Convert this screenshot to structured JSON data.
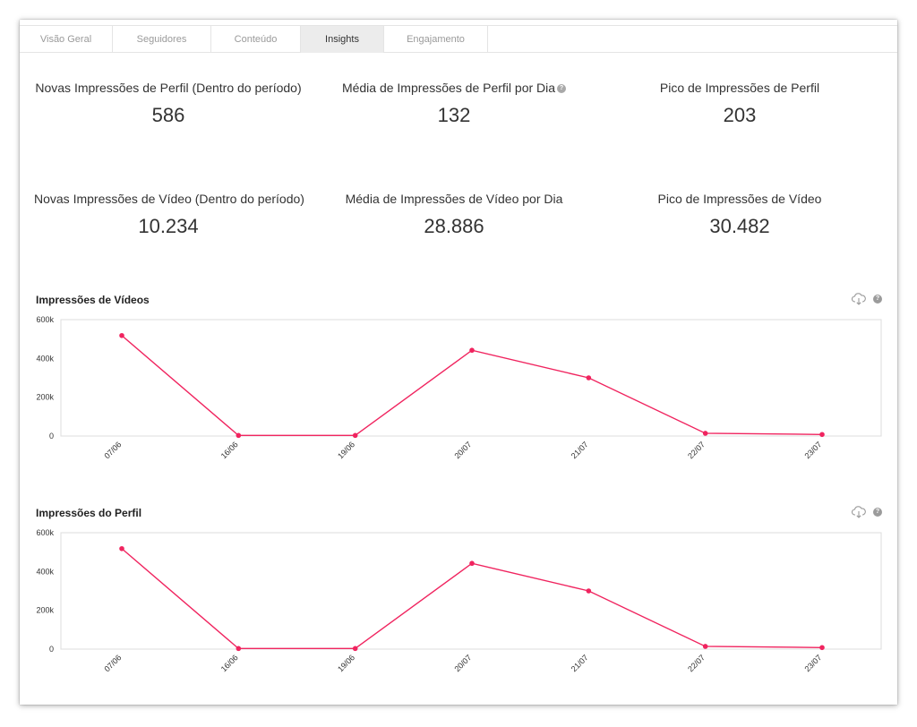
{
  "tabs": [
    {
      "label": "Visão Geral",
      "active": false
    },
    {
      "label": "Seguidores",
      "active": false
    },
    {
      "label": "Conteúdo",
      "active": false
    },
    {
      "label": "Insights",
      "active": true
    },
    {
      "label": "Engajamento",
      "active": false
    }
  ],
  "stats": [
    {
      "label": "Novas Impressões de Perfil (Dentro do período)",
      "value": "586",
      "help": false
    },
    {
      "label": "Média de Impressões de Perfil por Dia",
      "value": "132",
      "help": true
    },
    {
      "label": "Pico de Impressões de Perfil",
      "value": "203",
      "help": false
    },
    {
      "label": "Novas Impressões de Vídeo (Dentro do período)",
      "value": "10.234",
      "help": false
    },
    {
      "label": "Média de Impressões de Vídeo por Dia",
      "value": "28.886",
      "help": false
    },
    {
      "label": "Pico de Impressões de Vídeo",
      "value": "30.482",
      "help": false
    }
  ],
  "help_glyph": "?",
  "colors": {
    "line": "#f0245f",
    "grid": "#dddddd",
    "active_tab": "#ececec"
  },
  "icons": {
    "download": "cloud-download-icon",
    "help": "help-circle-icon"
  },
  "chart_data": [
    {
      "type": "line",
      "title": "Impressões de Vídeos",
      "categories": [
        "07/06",
        "16/06",
        "19/06",
        "20/07",
        "21/07",
        "22/07",
        "23/07"
      ],
      "series": [
        {
          "values": [
            518000,
            3000,
            3000,
            442000,
            300000,
            14000,
            8000
          ]
        }
      ],
      "ylim": [
        0,
        600000
      ],
      "yticks": [
        0,
        200000,
        400000,
        600000
      ],
      "ytick_labels": [
        "0",
        "200k",
        "400k",
        "600k"
      ],
      "grid": false
    },
    {
      "type": "line",
      "title": "Impressões do Perfil",
      "categories": [
        "07/06",
        "16/06",
        "19/06",
        "20/07",
        "21/07",
        "22/07",
        "23/07"
      ],
      "series": [
        {
          "values": [
            518000,
            3000,
            3000,
            442000,
            300000,
            14000,
            8000
          ]
        }
      ],
      "ylim": [
        0,
        600000
      ],
      "yticks": [
        0,
        200000,
        400000,
        600000
      ],
      "ytick_labels": [
        "0",
        "200k",
        "400k",
        "600k"
      ],
      "grid": false
    }
  ]
}
